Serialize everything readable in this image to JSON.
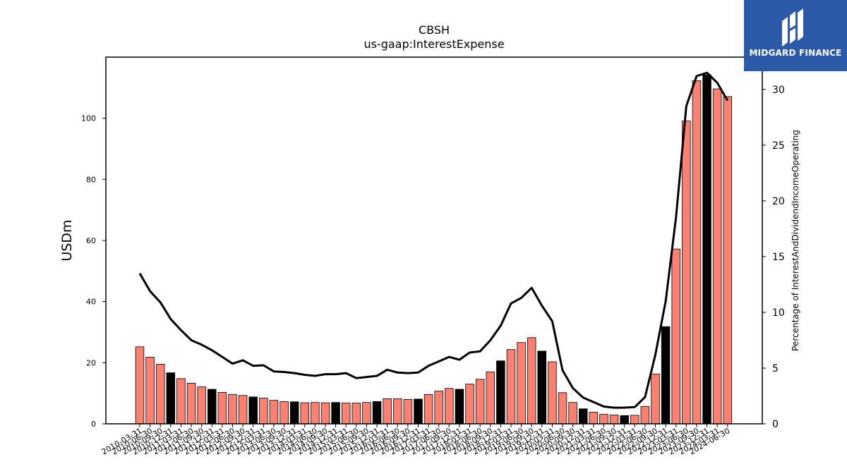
{
  "chart_data": {
    "type": "bar",
    "title": "CBSH",
    "subtitle": "us-gaap:InterestExpense",
    "ylabel": "USDm",
    "y2label": "Percentage of InterestAndDividendIncomeOperating",
    "ylim": [
      0,
      120
    ],
    "y2lim": [
      0,
      32.9
    ],
    "yticks": [
      0,
      20,
      40,
      60,
      80,
      100
    ],
    "y2ticks": [
      0,
      5,
      10,
      15,
      20,
      25,
      30
    ],
    "categories": [
      "2010-03-31",
      "2010-06-30",
      "2010-09-30",
      "2010-12-31",
      "2011-03-31",
      "2011-06-30",
      "2011-09-30",
      "2011-12-31",
      "2012-03-31",
      "2012-06-30",
      "2012-09-30",
      "2012-12-31",
      "2013-03-31",
      "2013-06-30",
      "2013-09-30",
      "2013-12-31",
      "2014-03-31",
      "2014-06-30",
      "2014-09-30",
      "2014-12-31",
      "2015-03-31",
      "2015-06-30",
      "2015-09-30",
      "2015-12-31",
      "2016-03-31",
      "2016-06-30",
      "2016-09-30",
      "2016-12-31",
      "2017-03-31",
      "2017-06-30",
      "2017-09-30",
      "2017-12-31",
      "2018-03-31",
      "2018-06-30",
      "2018-09-30",
      "2018-12-31",
      "2019-03-31",
      "2019-06-30",
      "2019-09-30",
      "2019-12-31",
      "2020-03-31",
      "2020-06-30",
      "2020-09-30",
      "2020-12-31",
      "2021-03-31",
      "2021-06-30",
      "2021-09-30",
      "2021-12-31",
      "2022-03-31",
      "2022-06-30",
      "2022-09-30",
      "2022-12-31",
      "2023-03-31",
      "2023-06-30",
      "2023-09-30",
      "2023-12-31",
      "2024-03-31",
      "2024-06-30"
    ],
    "series": [
      {
        "type": "bar",
        "values": [
          25.2,
          21.8,
          19.5,
          16.7,
          14.8,
          13.3,
          12.1,
          11.3,
          10.3,
          9.6,
          9.3,
          8.8,
          8.4,
          7.7,
          7.3,
          7.2,
          6.9,
          7.0,
          6.9,
          7.0,
          6.8,
          6.8,
          7.0,
          7.3,
          8.2,
          8.2,
          8.0,
          8.1,
          9.6,
          10.7,
          11.6,
          11.3,
          13.0,
          14.6,
          17.0,
          20.6,
          24.3,
          26.6,
          28.2,
          23.8,
          20.3,
          10.2,
          7.0,
          4.9,
          3.8,
          3.1,
          2.9,
          2.7,
          2.8,
          5.7,
          16.3,
          31.8,
          57.2,
          99.1,
          112.3,
          114.2,
          109.6,
          107.1
        ],
        "colors": {
          "regular": "#fa8072",
          "year_end": "#000000"
        }
      },
      {
        "type": "line",
        "axis": "right",
        "color": "#000000",
        "values": [
          13.5,
          11.9,
          10.9,
          9.4,
          8.4,
          7.5,
          7.1,
          6.6,
          6.0,
          5.4,
          5.7,
          5.2,
          5.25,
          4.7,
          4.65,
          4.55,
          4.4,
          4.3,
          4.45,
          4.45,
          4.55,
          4.1,
          4.2,
          4.3,
          4.85,
          4.6,
          4.55,
          4.6,
          5.2,
          5.6,
          6.0,
          5.75,
          6.4,
          6.5,
          7.5,
          8.8,
          10.8,
          11.3,
          12.2,
          10.6,
          9.2,
          4.8,
          3.2,
          2.35,
          1.95,
          1.55,
          1.45,
          1.45,
          1.5,
          2.4,
          6.2,
          11.0,
          18.5,
          28.5,
          31.2,
          31.5,
          30.6,
          29.0
        ]
      }
    ],
    "legend": "none",
    "grid": false
  },
  "logo": {
    "text": "MIDGARD FINANCE"
  }
}
